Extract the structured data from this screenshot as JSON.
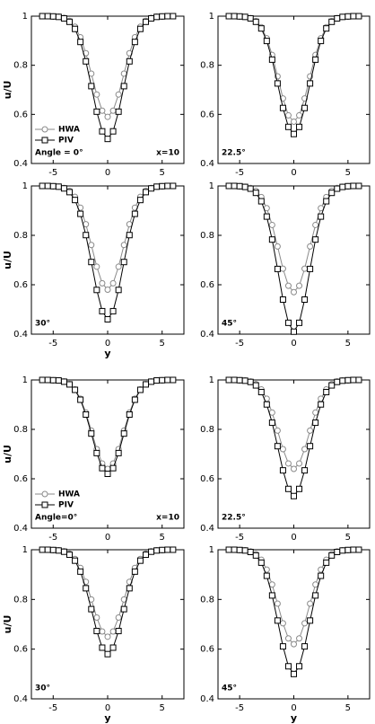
{
  "chart_data": [
    {
      "type": "line",
      "ylabel": "u/U",
      "label": "Angle = 0°",
      "note": "x=10",
      "legend": "lower left",
      "x": [
        -6,
        -5.5,
        -5,
        -4.5,
        -4,
        -3.5,
        -3,
        -2.5,
        -2,
        -1.5,
        -1,
        -0.5,
        0,
        0.5,
        1,
        1.5,
        2,
        2.5,
        3,
        3.5,
        4,
        4.5,
        5,
        5.5,
        6
      ],
      "xlim": [
        -7,
        7
      ],
      "xticks": [
        -5,
        0,
        5
      ],
      "ylim": [
        0.4,
        1
      ],
      "yticks": [
        0.4,
        0.6,
        0.8,
        1
      ],
      "series": [
        {
          "name": "HWA",
          "color": "#8a8a8a",
          "marker": "circle",
          "values": [
            1,
            1,
            0.999,
            0.998,
            0.993,
            0.981,
            0.957,
            0.914,
            0.849,
            0.766,
            0.681,
            0.615,
            0.59,
            0.615,
            0.681,
            0.766,
            0.849,
            0.914,
            0.957,
            0.981,
            0.993,
            0.998,
            0.999,
            1,
            1
          ]
        },
        {
          "name": "PIV",
          "color": "#000000",
          "marker": "square",
          "values": [
            1,
            1,
            0.999,
            0.997,
            0.991,
            0.977,
            0.948,
            0.895,
            0.816,
            0.715,
            0.611,
            0.531,
            0.5,
            0.531,
            0.611,
            0.715,
            0.816,
            0.895,
            0.948,
            0.977,
            0.991,
            0.997,
            0.999,
            1,
            1
          ]
        }
      ]
    },
    {
      "type": "line",
      "label": "22.5°",
      "x": [
        -6,
        -5.5,
        -5,
        -4.5,
        -4,
        -3.5,
        -3,
        -2.5,
        -2,
        -1.5,
        -1,
        -0.5,
        0,
        0.5,
        1,
        1.5,
        2,
        2.5,
        3,
        3.5,
        4,
        4.5,
        5,
        5.5,
        6
      ],
      "xlim": [
        -7,
        7
      ],
      "xticks": [
        -5,
        0,
        5
      ],
      "ylim": [
        0.4,
        1
      ],
      "yticks": [
        0.4,
        0.6,
        0.8,
        1
      ],
      "series": [
        {
          "name": "HWA",
          "color": "#8a8a8a",
          "marker": "circle",
          "values": [
            1,
            1,
            0.999,
            0.997,
            0.992,
            0.98,
            0.955,
            0.91,
            0.842,
            0.755,
            0.665,
            0.596,
            0.57,
            0.596,
            0.665,
            0.755,
            0.842,
            0.91,
            0.955,
            0.98,
            0.992,
            0.997,
            0.999,
            1,
            1
          ]
        },
        {
          "name": "PIV",
          "color": "#000000",
          "marker": "square",
          "values": [
            1,
            1,
            0.999,
            0.997,
            0.991,
            0.977,
            0.95,
            0.899,
            0.823,
            0.726,
            0.626,
            0.549,
            0.52,
            0.549,
            0.626,
            0.726,
            0.823,
            0.899,
            0.95,
            0.977,
            0.991,
            0.997,
            0.999,
            1,
            1
          ]
        }
      ]
    },
    {
      "type": "line",
      "ylabel": "u/U",
      "xlabel": "y",
      "label": "30°",
      "x": [
        -6,
        -5.5,
        -5,
        -4.5,
        -4,
        -3.5,
        -3,
        -2.5,
        -2,
        -1.5,
        -1,
        -0.5,
        0,
        0.5,
        1,
        1.5,
        2,
        2.5,
        3,
        3.5,
        4,
        4.5,
        5,
        5.5,
        6
      ],
      "xlim": [
        -7,
        7
      ],
      "xticks": [
        -5,
        0,
        5
      ],
      "ylim": [
        0.4,
        1
      ],
      "yticks": [
        0.4,
        0.6,
        0.8,
        1
      ],
      "series": [
        {
          "name": "HWA",
          "color": "#8a8a8a",
          "marker": "circle",
          "values": [
            1,
            1,
            0.999,
            0.997,
            0.992,
            0.98,
            0.956,
            0.912,
            0.845,
            0.761,
            0.673,
            0.606,
            0.58,
            0.606,
            0.673,
            0.761,
            0.845,
            0.912,
            0.956,
            0.98,
            0.992,
            0.997,
            0.999,
            1,
            1
          ]
        },
        {
          "name": "PIV",
          "color": "#000000",
          "marker": "square",
          "values": [
            1,
            1,
            0.999,
            0.997,
            0.99,
            0.975,
            0.943,
            0.887,
            0.801,
            0.692,
            0.579,
            0.493,
            0.46,
            0.493,
            0.579,
            0.692,
            0.801,
            0.887,
            0.943,
            0.975,
            0.99,
            0.997,
            0.999,
            1,
            1
          ]
        }
      ]
    },
    {
      "type": "line",
      "label": "45°",
      "x": [
        -6,
        -5.5,
        -5,
        -4.5,
        -4,
        -3.5,
        -3,
        -2.5,
        -2,
        -1.5,
        -1,
        -0.5,
        0,
        0.5,
        1,
        1.5,
        2,
        2.5,
        3,
        3.5,
        4,
        4.5,
        5,
        5.5,
        6
      ],
      "xlim": [
        -7,
        7
      ],
      "xticks": [
        -5,
        0,
        5
      ],
      "ylim": [
        0.4,
        1
      ],
      "yticks": [
        0.4,
        0.6,
        0.8,
        1
      ],
      "series": [
        {
          "name": "HWA",
          "color": "#8a8a8a",
          "marker": "circle",
          "values": [
            1,
            1,
            0.999,
            0.997,
            0.992,
            0.98,
            0.955,
            0.91,
            0.842,
            0.755,
            0.665,
            0.596,
            0.57,
            0.596,
            0.665,
            0.755,
            0.842,
            0.91,
            0.955,
            0.98,
            0.992,
            0.997,
            0.999,
            1,
            1
          ]
        },
        {
          "name": "PIV",
          "color": "#000000",
          "marker": "square",
          "values": [
            1,
            1,
            0.999,
            0.996,
            0.989,
            0.972,
            0.938,
            0.876,
            0.783,
            0.664,
            0.54,
            0.446,
            0.41,
            0.446,
            0.54,
            0.664,
            0.783,
            0.876,
            0.938,
            0.972,
            0.989,
            0.996,
            0.999,
            1,
            1
          ]
        }
      ]
    },
    {
      "type": "line",
      "ylabel": "u/U",
      "label": "Angle=0°",
      "note": "x=10",
      "legend": "lower left",
      "x": [
        -6,
        -5.5,
        -5,
        -4.5,
        -4,
        -3.5,
        -3,
        -2.5,
        -2,
        -1.5,
        -1,
        -0.5,
        0,
        0.5,
        1,
        1.5,
        2,
        2.5,
        3,
        3.5,
        4,
        4.5,
        5,
        5.5,
        6
      ],
      "xlim": [
        -7,
        7
      ],
      "xticks": [
        -5,
        0,
        5
      ],
      "ylim": [
        0.4,
        1
      ],
      "yticks": [
        0.4,
        0.6,
        0.8,
        1
      ],
      "series": [
        {
          "name": "HWA",
          "color": "#8a8a8a",
          "marker": "circle",
          "values": [
            1,
            1,
            0.999,
            0.998,
            0.994,
            0.983,
            0.962,
            0.924,
            0.868,
            0.795,
            0.72,
            0.662,
            0.64,
            0.662,
            0.72,
            0.795,
            0.868,
            0.924,
            0.962,
            0.983,
            0.994,
            0.998,
            0.999,
            1,
            1
          ]
        },
        {
          "name": "PIV",
          "color": "#000000",
          "marker": "square",
          "values": [
            1,
            1,
            0.999,
            0.998,
            0.993,
            0.982,
            0.96,
            0.92,
            0.86,
            0.783,
            0.704,
            0.643,
            0.62,
            0.643,
            0.704,
            0.783,
            0.86,
            0.92,
            0.96,
            0.982,
            0.993,
            0.998,
            0.999,
            1,
            1
          ]
        }
      ]
    },
    {
      "type": "line",
      "label": "22.5°",
      "x": [
        -6,
        -5.5,
        -5,
        -4.5,
        -4,
        -3.5,
        -3,
        -2.5,
        -2,
        -1.5,
        -1,
        -0.5,
        0,
        0.5,
        1,
        1.5,
        2,
        2.5,
        3,
        3.5,
        4,
        4.5,
        5,
        5.5,
        6
      ],
      "xlim": [
        -7,
        7
      ],
      "xticks": [
        -5,
        0,
        5
      ],
      "ylim": [
        0.4,
        1
      ],
      "yticks": [
        0.4,
        0.6,
        0.8,
        1
      ],
      "series": [
        {
          "name": "HWA",
          "color": "#8a8a8a",
          "marker": "circle",
          "values": [
            1,
            1,
            0.999,
            0.998,
            0.994,
            0.983,
            0.962,
            0.924,
            0.868,
            0.795,
            0.72,
            0.662,
            0.64,
            0.662,
            0.72,
            0.795,
            0.868,
            0.924,
            0.962,
            0.983,
            0.994,
            0.998,
            0.999,
            1,
            1
          ]
        },
        {
          "name": "PIV",
          "color": "#000000",
          "marker": "square",
          "values": [
            1,
            1,
            0.999,
            0.997,
            0.992,
            0.978,
            0.951,
            0.901,
            0.827,
            0.732,
            0.634,
            0.559,
            0.53,
            0.559,
            0.634,
            0.732,
            0.827,
            0.901,
            0.951,
            0.978,
            0.992,
            0.997,
            0.999,
            1,
            1
          ]
        }
      ]
    },
    {
      "type": "line",
      "ylabel": "u/U",
      "xlabel": "y",
      "label": "30°",
      "x": [
        -6,
        -5.5,
        -5,
        -4.5,
        -4,
        -3.5,
        -3,
        -2.5,
        -2,
        -1.5,
        -1,
        -0.5,
        0,
        0.5,
        1,
        1.5,
        2,
        2.5,
        3,
        3.5,
        4,
        4.5,
        5,
        5.5,
        6
      ],
      "xlim": [
        -7,
        7
      ],
      "xticks": [
        -5,
        0,
        5
      ],
      "ylim": [
        0.4,
        1
      ],
      "yticks": [
        0.4,
        0.6,
        0.8,
        1
      ],
      "series": [
        {
          "name": "HWA",
          "color": "#8a8a8a",
          "marker": "circle",
          "values": [
            1,
            1,
            0.999,
            0.998,
            0.994,
            0.984,
            0.963,
            0.927,
            0.871,
            0.8,
            0.727,
            0.671,
            0.65,
            0.671,
            0.727,
            0.8,
            0.871,
            0.927,
            0.963,
            0.984,
            0.994,
            0.998,
            0.999,
            1,
            1
          ]
        },
        {
          "name": "PIV",
          "color": "#000000",
          "marker": "square",
          "values": [
            1,
            1,
            0.999,
            0.997,
            0.992,
            0.98,
            0.956,
            0.912,
            0.845,
            0.761,
            0.673,
            0.606,
            0.58,
            0.606,
            0.673,
            0.761,
            0.845,
            0.912,
            0.956,
            0.98,
            0.992,
            0.997,
            0.999,
            1,
            1
          ]
        }
      ]
    },
    {
      "type": "line",
      "xlabel": "y",
      "label": "45°",
      "x": [
        -6,
        -5.5,
        -5,
        -4.5,
        -4,
        -3.5,
        -3,
        -2.5,
        -2,
        -1.5,
        -1,
        -0.5,
        0,
        0.5,
        1,
        1.5,
        2,
        2.5,
        3,
        3.5,
        4,
        4.5,
        5,
        5.5,
        6
      ],
      "xlim": [
        -7,
        7
      ],
      "xticks": [
        -5,
        0,
        5
      ],
      "ylim": [
        0.4,
        1
      ],
      "yticks": [
        0.4,
        0.6,
        0.8,
        1
      ],
      "series": [
        {
          "name": "HWA",
          "color": "#8a8a8a",
          "marker": "circle",
          "values": [
            1,
            1,
            0.999,
            0.998,
            0.993,
            0.982,
            0.96,
            0.92,
            0.86,
            0.783,
            0.704,
            0.643,
            0.62,
            0.643,
            0.704,
            0.783,
            0.86,
            0.92,
            0.96,
            0.982,
            0.993,
            0.998,
            0.999,
            1,
            1
          ]
        },
        {
          "name": "PIV",
          "color": "#000000",
          "marker": "square",
          "values": [
            1,
            1,
            0.999,
            0.997,
            0.991,
            0.977,
            0.948,
            0.895,
            0.816,
            0.715,
            0.611,
            0.531,
            0.5,
            0.531,
            0.611,
            0.715,
            0.816,
            0.895,
            0.948,
            0.977,
            0.991,
            0.997,
            0.999,
            1,
            1
          ]
        }
      ]
    }
  ]
}
